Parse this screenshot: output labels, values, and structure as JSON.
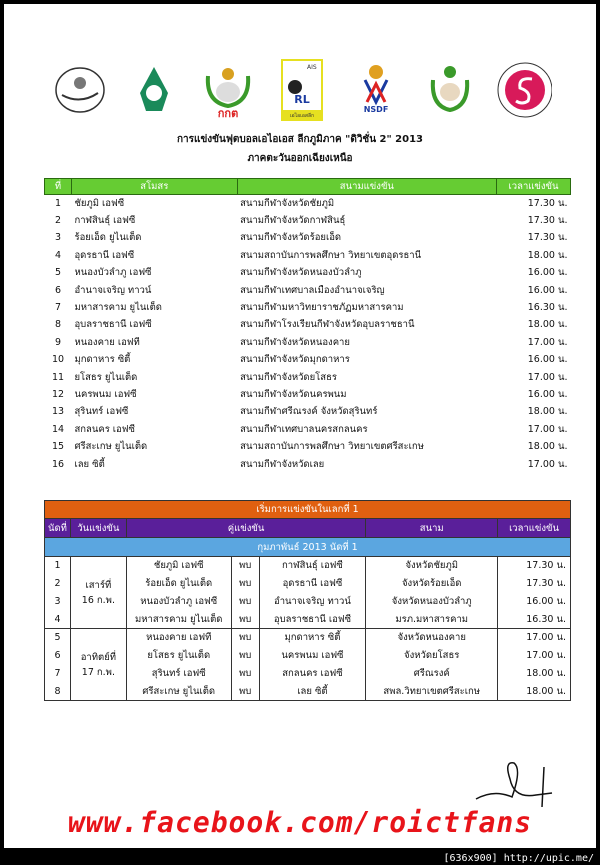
{
  "logos": [
    "Sports Authority logo",
    "Ministry logo",
    "Football Association logo",
    "AIS Regional League logo",
    "NSDF logo",
    "Department of Physical Education logo",
    "Siam Sport logo"
  ],
  "logo_text": {
    "rl": "RL",
    "ais": "AIS",
    "nsdf": "NSDF",
    "fat": "กกต",
    "league": "เอไอเอสลีก"
  },
  "title": "การแข่งขันฟุตบอลเอไอเอส ลีกภูมิภาค \"ดิวิชั่น 2\" 2013",
  "subtitle": "ภาคตะวันออกเฉียงเหนือ",
  "clubs_table": {
    "headers": [
      "ที่",
      "สโมสร",
      "สนามแข่งขัน",
      "เวลาแข่งขัน"
    ],
    "rows": [
      [
        "1",
        "ชัยภูมิ เอฟซี",
        "สนามกีฬาจังหวัดชัยภูมิ",
        "17.30 น."
      ],
      [
        "2",
        "กาฬสินธุ์ เอฟซี",
        "สนามกีฬาจังหวัดกาฬสินธุ์",
        "17.30 น."
      ],
      [
        "3",
        "ร้อยเอ็ด ยูไนเต็ด",
        "สนามกีฬาจังหวัดร้อยเอ็ด",
        "17.30 น."
      ],
      [
        "4",
        "อุดรธานี เอฟซี",
        "สนามสถาบันการพลศึกษา วิทยาเขตอุดรธานี",
        "18.00 น."
      ],
      [
        "5",
        "หนองบัวลำภู เอฟซี",
        "สนามกีฬาจังหวัดหนองบัวลำภู",
        "16.00 น."
      ],
      [
        "6",
        "อำนาจเจริญ ทาวน์",
        "สนามกีฬาเทศบาลเมืองอำนาจเจริญ",
        "16.00 น."
      ],
      [
        "7",
        "มหาสารคาม ยูไนเต็ด",
        "สนามกีฬามหาวิทยาราชภัฏมหาสารคาม",
        "16.30 น."
      ],
      [
        "8",
        "อุบลราชธานี เอฟซี",
        "สนามกีฬาโรงเรียนกีฬาจังหวัดอุบลราชธานี",
        "18.00 น."
      ],
      [
        "9",
        "หนองคาย เอฟที",
        "สนามกีฬาจังหวัดหนองคาย",
        "17.00 น."
      ],
      [
        "10",
        "มุกดาหาร ซิตี้",
        "สนามกีฬาจังหวัดมุกดาหาร",
        "16.00 น."
      ],
      [
        "11",
        "ยโสธร ยูไนเต็ด",
        "สนามกีฬาจังหวัดยโสธร",
        "17.00 น."
      ],
      [
        "12",
        "นครพนม เอฟซี",
        "สนามกีฬาจังหวัดนครพนม",
        "16.00 น."
      ],
      [
        "13",
        "สุรินทร์ เอฟซี",
        "สนามกีฬาศรีณรงค์ จังหวัดสุรินทร์",
        "18.00 น."
      ],
      [
        "14",
        "สกลนคร เอฟซี",
        "สนามกีฬาเทศบาลนครสกลนคร",
        "17.00 น."
      ],
      [
        "15",
        "ศรีสะเกษ ยูไนเต็ด",
        "สนามสถาบันการพลศึกษา วิทยาเขตศรีสะเกษ",
        "18.00 น."
      ],
      [
        "16",
        "เลย ซิตี้",
        "สนามกีฬาจังหวัดเลย",
        "17.00 น."
      ]
    ]
  },
  "fixtures": {
    "banner": "เริ่มการแข่งขันในเลกที่ 1",
    "headers": [
      "นัดที่",
      "วันแข่งขัน",
      "คู่แข่งขัน",
      "สนาม",
      "เวลาแข่งขัน"
    ],
    "round": "กุมภาพันธ์ 2013 นัดที่ 1",
    "vs": "พบ",
    "days": [
      {
        "line1": "เสาร์ที่",
        "line2": "16 ก.พ."
      },
      {
        "line1": "อาทิตย์ที่",
        "line2": "17 ก.พ."
      }
    ],
    "rows": [
      [
        "1",
        "ชัยภูมิ เอฟซี",
        "กาฬสินธุ์ เอฟซี",
        "จังหวัดชัยภูมิ",
        "17.30 น."
      ],
      [
        "2",
        "ร้อยเอ็ด ยูไนเต็ด",
        "อุดรธานี เอฟซี",
        "จังหวัดร้อยเอ็ด",
        "17.30 น."
      ],
      [
        "3",
        "หนองบัวลำภู เอฟซี",
        "อำนาจเจริญ ทาวน์",
        "จังหวัดหนองบัวลำภู",
        "16.00 น."
      ],
      [
        "4",
        "มหาสารคาม ยูไนเต็ด",
        "อุบลราชธานี เอฟซี",
        "มรภ.มหาสารคาม",
        "16.30 น."
      ],
      [
        "5",
        "หนองคาย เอฟที",
        "มุกดาหาร ซิตี้",
        "จังหวัดหนองคาย",
        "17.00 น."
      ],
      [
        "6",
        "ยโสธร ยูไนเต็ด",
        "นครพนม เอฟซี",
        "จังหวัดยโสธร",
        "17.00 น."
      ],
      [
        "7",
        "สุรินทร์ เอฟซี",
        "สกลนคร เอฟซี",
        "ศรีณรงค์",
        "18.00 น."
      ],
      [
        "8",
        "ศรีสะเกษ ยูไนเต็ด",
        "เลย ซิตี้",
        "สพล.วิทยาเขตศรีสะเกษ",
        "18.00 น."
      ]
    ]
  },
  "facebook": "www.facebook.com/roictfans",
  "footer": "[636x900] http://upic.me/",
  "colors": {
    "green": "#66cc33",
    "orange": "#e06010",
    "purple": "#5a1f9a",
    "blue": "#5ba6e0",
    "red": "#e8141a"
  }
}
